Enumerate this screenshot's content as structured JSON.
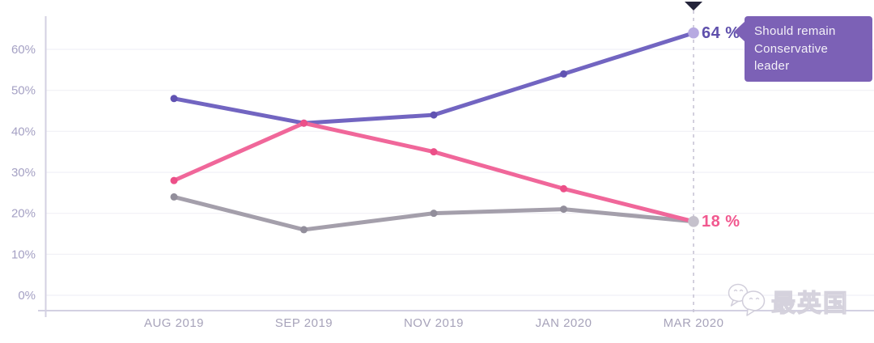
{
  "chart_data": {
    "type": "line",
    "title": "",
    "categories": [
      "AUG 2019",
      "SEP 2019",
      "NOV 2019",
      "JAN 2020",
      "MAR 2020"
    ],
    "y_axis": {
      "tick_labels": [
        "0%",
        "10%",
        "20%",
        "30%",
        "40%",
        "50%",
        "60%"
      ],
      "tick_values": [
        0,
        10,
        20,
        30,
        40,
        50,
        60
      ]
    },
    "ylim": [
      0,
      68
    ],
    "grid": true,
    "legend_position": "none",
    "series": [
      {
        "id": "gray-series",
        "name": "",
        "color": "#a49fab",
        "point_color": "#928e9b",
        "end_marker_color": "#c5c1cc",
        "end_label": "",
        "end_label_color": "",
        "values": [
          24,
          16,
          20,
          21,
          18
        ]
      },
      {
        "id": "remain-leader-series",
        "name": "Should remain Conservative leader",
        "color": "#7265c1",
        "point_color": "#6052b2",
        "end_marker_color": "#b7aae1",
        "end_label": "64 %",
        "end_label_color": "#5f50ac",
        "values": [
          48,
          42,
          44,
          54,
          64
        ]
      },
      {
        "id": "pink-series",
        "name": "",
        "color": "#f0679a",
        "point_color": "#ec4f88",
        "end_marker_color": null,
        "end_label": "18 %",
        "end_label_color": "#f1588f",
        "values": [
          28,
          42,
          35,
          26,
          18
        ]
      }
    ],
    "highlight": {
      "category": "MAR 2020",
      "index": 4
    },
    "tooltip": {
      "text": "Should remain\nConservative\nleader",
      "bg": "#7c61b6",
      "text_color": "#f4f1f8"
    },
    "colors": {
      "grid": "#f1f0f6",
      "axis": "#d3d0e2",
      "y_tick_label": "#a5a1c4",
      "x_tick_label": "#a7a3ba",
      "dashed_line": "#c8c5d5",
      "triangle": "#23233a"
    }
  },
  "watermark": {
    "text": "最英国",
    "icon": "wechat-logo-icon"
  }
}
